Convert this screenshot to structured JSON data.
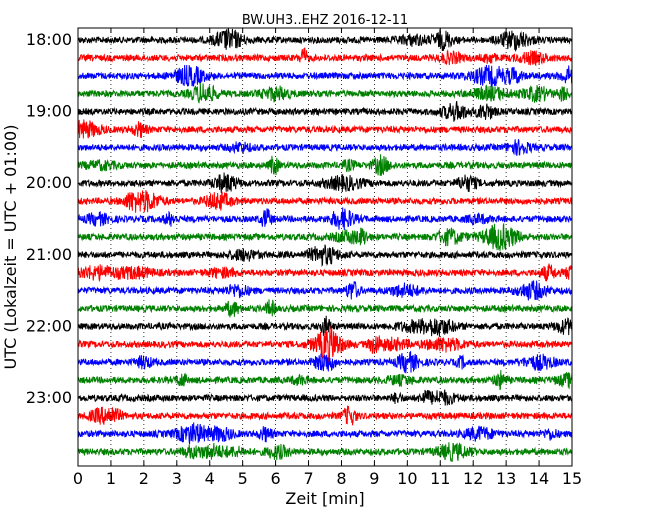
{
  "chart_data": {
    "type": "line",
    "title": "BW.UH3..EHZ 2016-12-11",
    "xlabel": "Zeit  [min]",
    "ylabel": "UTC (Lokalzeit = UTC + 01:00)",
    "xlim": [
      0,
      15
    ],
    "x_ticks": [
      "0",
      "1",
      "2",
      "3",
      "4",
      "5",
      "6",
      "7",
      "8",
      "9",
      "10",
      "11",
      "12",
      "13",
      "14",
      "15"
    ],
    "y_tick_labels": [
      "18:00",
      "19:00",
      "20:00",
      "21:00",
      "22:00",
      "23:00"
    ],
    "trace_start_times": [
      "18:00",
      "18:15",
      "18:30",
      "18:45",
      "19:00",
      "19:15",
      "19:30",
      "19:45",
      "20:00",
      "20:15",
      "20:30",
      "20:45",
      "21:00",
      "21:15",
      "21:30",
      "21:45",
      "22:00",
      "22:15",
      "22:30",
      "22:45",
      "23:00",
      "23:15",
      "23:30",
      "23:45"
    ],
    "trace_colors": [
      "#000000",
      "#ff0000",
      "#0000ff",
      "#008000"
    ],
    "grid": "vertical dotted at each minute"
  }
}
